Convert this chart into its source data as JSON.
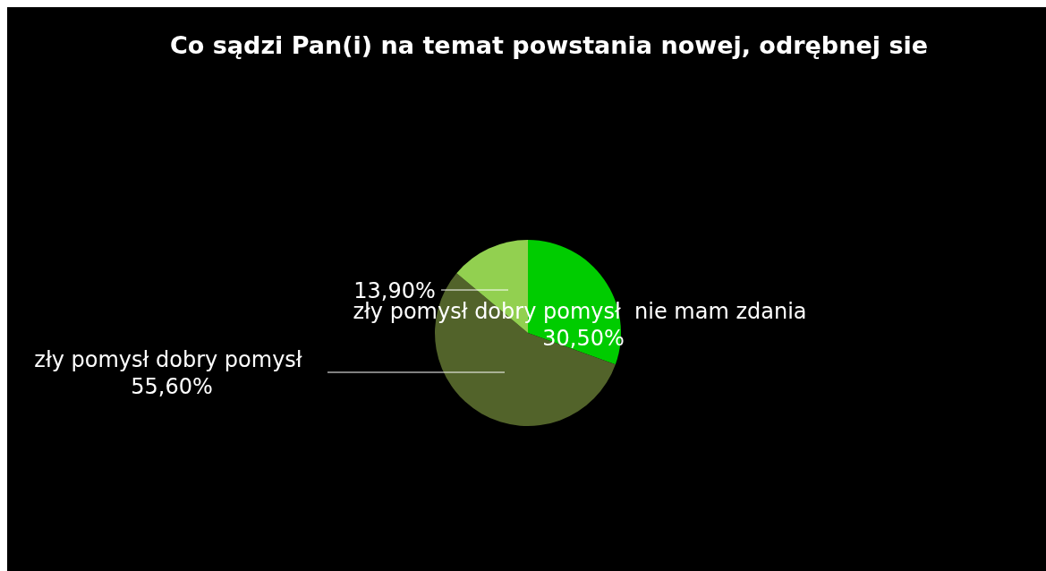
{
  "chart_data": {
    "type": "pie",
    "title": "Co sądzi Pan(i) na temat powstania nowej, odrębnej sie",
    "categories": [
      "zły pomysł dobry pomysł  nie mam zdania",
      "zły pomysł dobry pomysł",
      null
    ],
    "values": [
      30.5,
      55.6,
      13.9
    ],
    "colors": [
      "#00cc00",
      "#52632a",
      "#92d050"
    ],
    "value_labels": [
      "30,50%",
      "55,60%",
      "13,90%"
    ],
    "legend": false
  }
}
